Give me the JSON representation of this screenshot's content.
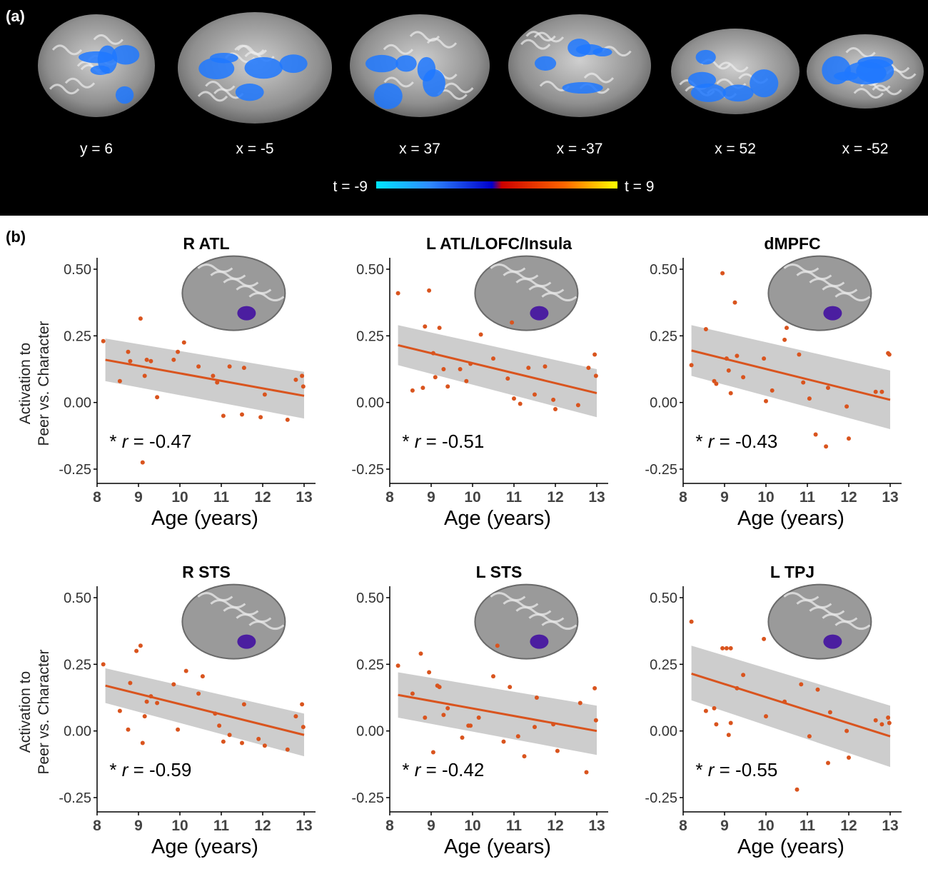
{
  "panel_a": {
    "label": "(a)",
    "slices": [
      "y = 6",
      "x = -5",
      "x = 37",
      "x = -37",
      "x = 52",
      "x = -52"
    ],
    "colorbar": {
      "min_label": "t = -9",
      "max_label": "t = 9",
      "min_t": -9,
      "max_t": 9
    },
    "colors": {
      "background": "#000000",
      "activation": "#1e78ff"
    }
  },
  "panel_b": {
    "label": "(b)",
    "ylabel_line1": "Activation to",
    "ylabel_line2": "Peer vs. Character",
    "colors": {
      "points": "#d9541e",
      "line": "#d9541e",
      "ci": "#c8c8c8",
      "roi": "#4b1ea0"
    }
  },
  "chart_data": [
    {
      "type": "scatter",
      "title": "R ATL",
      "xlabel": "Age (years)",
      "xlim": [
        8,
        13
      ],
      "ylim": [
        -0.25,
        0.5
      ],
      "xticks": [
        8,
        9,
        10,
        11,
        12,
        13
      ],
      "yticks": [
        -0.25,
        0,
        0.25,
        0.5
      ],
      "ytick_labels": [
        "-0.25",
        "0.00",
        "0.25",
        "0.50"
      ],
      "annotation": {
        "star": "*",
        "r": "r",
        "rest": "= -0.47"
      },
      "fit": {
        "y_start": 0.16,
        "y_end": 0.025,
        "ci_start": [
          0.08,
          0.24
        ],
        "ci_end": [
          -0.06,
          0.115
        ]
      },
      "points": [
        [
          8.15,
          0.23
        ],
        [
          8.55,
          0.08
        ],
        [
          8.75,
          0.19
        ],
        [
          8.8,
          0.155
        ],
        [
          9.05,
          0.315
        ],
        [
          9.1,
          -0.225
        ],
        [
          9.15,
          0.1
        ],
        [
          9.2,
          0.16
        ],
        [
          9.3,
          0.155
        ],
        [
          9.45,
          0.02
        ],
        [
          9.85,
          0.16
        ],
        [
          9.95,
          0.19
        ],
        [
          10.1,
          0.225
        ],
        [
          10.45,
          0.135
        ],
        [
          10.8,
          0.1
        ],
        [
          10.9,
          0.075
        ],
        [
          11.05,
          -0.05
        ],
        [
          11.2,
          0.135
        ],
        [
          11.5,
          -0.045
        ],
        [
          11.55,
          0.13
        ],
        [
          11.95,
          -0.055
        ],
        [
          12.05,
          0.03
        ],
        [
          12.6,
          -0.065
        ],
        [
          12.8,
          0.085
        ],
        [
          12.95,
          0.1
        ],
        [
          12.98,
          0.06
        ]
      ]
    },
    {
      "type": "scatter",
      "title": "L ATL/LOFC/Insula",
      "xlabel": "Age (years)",
      "xlim": [
        8,
        13
      ],
      "ylim": [
        -0.25,
        0.5
      ],
      "xticks": [
        8,
        9,
        10,
        11,
        12,
        13
      ],
      "yticks": [
        -0.25,
        0,
        0.25,
        0.5
      ],
      "ytick_labels": [
        "-0.25",
        "0.00",
        "0.25",
        "0.50"
      ],
      "annotation": {
        "star": "*",
        "r": "r",
        "rest": "= -0.51"
      },
      "fit": {
        "y_start": 0.215,
        "y_end": 0.035,
        "ci_start": [
          0.14,
          0.29
        ],
        "ci_end": [
          -0.055,
          0.125
        ]
      },
      "points": [
        [
          8.2,
          0.41
        ],
        [
          8.55,
          0.045
        ],
        [
          8.8,
          0.055
        ],
        [
          8.85,
          0.285
        ],
        [
          8.95,
          0.42
        ],
        [
          9.05,
          0.185
        ],
        [
          9.1,
          0.095
        ],
        [
          9.2,
          0.28
        ],
        [
          9.3,
          0.125
        ],
        [
          9.4,
          0.06
        ],
        [
          9.7,
          0.125
        ],
        [
          9.85,
          0.08
        ],
        [
          9.95,
          0.145
        ],
        [
          10.2,
          0.255
        ],
        [
          10.5,
          0.165
        ],
        [
          10.85,
          0.09
        ],
        [
          10.95,
          0.3
        ],
        [
          11.0,
          0.015
        ],
        [
          11.15,
          -0.005
        ],
        [
          11.35,
          0.13
        ],
        [
          11.5,
          0.03
        ],
        [
          11.75,
          0.135
        ],
        [
          11.95,
          0.01
        ],
        [
          12.0,
          -0.025
        ],
        [
          12.55,
          -0.01
        ],
        [
          12.8,
          0.13
        ],
        [
          12.95,
          0.18
        ],
        [
          12.98,
          0.1
        ]
      ]
    },
    {
      "type": "scatter",
      "title": "dMPFC",
      "xlabel": "Age (years)",
      "xlim": [
        8,
        13
      ],
      "ylim": [
        -0.25,
        0.5
      ],
      "xticks": [
        8,
        9,
        10,
        11,
        12,
        13
      ],
      "yticks": [
        -0.25,
        0,
        0.25,
        0.5
      ],
      "ytick_labels": [
        "-0.25",
        "0.00",
        "0.25",
        "0.50"
      ],
      "annotation": {
        "star": "*",
        "r": "r",
        "rest": "= -0.43"
      },
      "fit": {
        "y_start": 0.195,
        "y_end": 0.01,
        "ci_start": [
          0.1,
          0.29
        ],
        "ci_end": [
          -0.1,
          0.12
        ]
      },
      "points": [
        [
          8.2,
          0.14
        ],
        [
          8.55,
          0.275
        ],
        [
          8.75,
          0.08
        ],
        [
          8.8,
          0.07
        ],
        [
          8.95,
          0.485
        ],
        [
          9.05,
          0.165
        ],
        [
          9.1,
          0.12
        ],
        [
          9.15,
          0.035
        ],
        [
          9.25,
          0.375
        ],
        [
          9.3,
          0.175
        ],
        [
          9.45,
          0.095
        ],
        [
          9.95,
          0.165
        ],
        [
          10.0,
          0.005
        ],
        [
          10.15,
          0.045
        ],
        [
          10.45,
          0.235
        ],
        [
          10.5,
          0.28
        ],
        [
          10.8,
          0.18
        ],
        [
          10.9,
          0.075
        ],
        [
          11.05,
          0.015
        ],
        [
          11.2,
          -0.12
        ],
        [
          11.45,
          -0.165
        ],
        [
          11.5,
          0.055
        ],
        [
          11.95,
          -0.015
        ],
        [
          12.0,
          -0.135
        ],
        [
          12.65,
          0.04
        ],
        [
          12.8,
          0.04
        ],
        [
          12.95,
          0.185
        ],
        [
          12.98,
          0.18
        ]
      ]
    },
    {
      "type": "scatter",
      "title": "R STS",
      "xlabel": "Age (years)",
      "xlim": [
        8,
        13
      ],
      "ylim": [
        -0.25,
        0.5
      ],
      "xticks": [
        8,
        9,
        10,
        11,
        12,
        13
      ],
      "yticks": [
        -0.25,
        0,
        0.25,
        0.5
      ],
      "ytick_labels": [
        "-0.25",
        "0.00",
        "0.25",
        "0.50"
      ],
      "annotation": {
        "star": "*",
        "r": "r",
        "rest": "= -0.59"
      },
      "fit": {
        "y_start": 0.17,
        "y_end": -0.015,
        "ci_start": [
          0.105,
          0.235
        ],
        "ci_end": [
          -0.095,
          0.065
        ]
      },
      "points": [
        [
          8.15,
          0.25
        ],
        [
          8.55,
          0.075
        ],
        [
          8.75,
          0.005
        ],
        [
          8.8,
          0.18
        ],
        [
          8.95,
          0.3
        ],
        [
          9.05,
          0.32
        ],
        [
          9.1,
          -0.045
        ],
        [
          9.15,
          0.055
        ],
        [
          9.2,
          0.11
        ],
        [
          9.3,
          0.13
        ],
        [
          9.45,
          0.105
        ],
        [
          9.85,
          0.175
        ],
        [
          9.95,
          0.005
        ],
        [
          10.15,
          0.225
        ],
        [
          10.45,
          0.14
        ],
        [
          10.55,
          0.205
        ],
        [
          10.85,
          0.065
        ],
        [
          10.95,
          0.02
        ],
        [
          11.05,
          -0.04
        ],
        [
          11.2,
          -0.015
        ],
        [
          11.5,
          -0.045
        ],
        [
          11.55,
          0.1
        ],
        [
          11.9,
          -0.03
        ],
        [
          12.05,
          -0.055
        ],
        [
          12.6,
          -0.07
        ],
        [
          12.8,
          0.055
        ],
        [
          12.95,
          0.1
        ],
        [
          12.98,
          0.015
        ]
      ]
    },
    {
      "type": "scatter",
      "title": "L STS",
      "xlabel": "Age (years)",
      "xlim": [
        8,
        13
      ],
      "ylim": [
        -0.25,
        0.5
      ],
      "xticks": [
        8,
        9,
        10,
        11,
        12,
        13
      ],
      "yticks": [
        -0.25,
        0,
        0.25,
        0.5
      ],
      "ytick_labels": [
        "-0.25",
        "0.00",
        "0.25",
        "0.50"
      ],
      "annotation": {
        "star": "*",
        "r": "r",
        "rest": "= -0.42"
      },
      "fit": {
        "y_start": 0.135,
        "y_end": 0.0,
        "ci_start": [
          0.05,
          0.22
        ],
        "ci_end": [
          -0.09,
          0.095
        ]
      },
      "points": [
        [
          8.2,
          0.245
        ],
        [
          8.55,
          0.14
        ],
        [
          8.75,
          0.29
        ],
        [
          8.85,
          0.05
        ],
        [
          8.95,
          0.22
        ],
        [
          9.05,
          -0.08
        ],
        [
          9.15,
          0.17
        ],
        [
          9.2,
          0.165
        ],
        [
          9.3,
          0.06
        ],
        [
          9.4,
          0.085
        ],
        [
          9.75,
          -0.025
        ],
        [
          9.9,
          0.02
        ],
        [
          9.95,
          0.02
        ],
        [
          10.15,
          0.05
        ],
        [
          10.5,
          0.205
        ],
        [
          10.6,
          0.32
        ],
        [
          10.75,
          -0.04
        ],
        [
          10.9,
          0.165
        ],
        [
          11.1,
          -0.02
        ],
        [
          11.25,
          -0.095
        ],
        [
          11.5,
          0.015
        ],
        [
          11.55,
          0.125
        ],
        [
          11.95,
          0.025
        ],
        [
          12.05,
          -0.075
        ],
        [
          12.6,
          0.105
        ],
        [
          12.75,
          -0.155
        ],
        [
          12.95,
          0.16
        ],
        [
          12.98,
          0.04
        ]
      ]
    },
    {
      "type": "scatter",
      "title": "L TPJ",
      "xlabel": "Age (years)",
      "xlim": [
        8,
        13
      ],
      "ylim": [
        -0.25,
        0.5
      ],
      "xticks": [
        8,
        9,
        10,
        11,
        12,
        13
      ],
      "yticks": [
        -0.25,
        0,
        0.25,
        0.5
      ],
      "ytick_labels": [
        "-0.25",
        "0.00",
        "0.25",
        "0.50"
      ],
      "annotation": {
        "star": "*",
        "r": "r",
        "rest": "= -0.55"
      },
      "fit": {
        "y_start": 0.215,
        "y_end": -0.02,
        "ci_start": [
          0.115,
          0.32
        ],
        "ci_end": [
          -0.135,
          0.095
        ]
      },
      "points": [
        [
          8.2,
          0.41
        ],
        [
          8.55,
          0.075
        ],
        [
          8.75,
          0.085
        ],
        [
          8.8,
          0.025
        ],
        [
          8.95,
          0.31
        ],
        [
          9.05,
          0.31
        ],
        [
          9.1,
          -0.015
        ],
        [
          9.15,
          0.31
        ],
        [
          9.15,
          0.03
        ],
        [
          9.3,
          0.16
        ],
        [
          9.45,
          0.21
        ],
        [
          9.95,
          0.345
        ],
        [
          10.0,
          0.055
        ],
        [
          10.45,
          0.11
        ],
        [
          10.75,
          -0.22
        ],
        [
          10.85,
          0.175
        ],
        [
          11.05,
          -0.02
        ],
        [
          11.25,
          0.155
        ],
        [
          11.5,
          -0.12
        ],
        [
          11.55,
          0.07
        ],
        [
          11.95,
          0.0
        ],
        [
          12.0,
          -0.1
        ],
        [
          12.65,
          0.04
        ],
        [
          12.8,
          0.025
        ],
        [
          12.95,
          0.05
        ],
        [
          12.98,
          0.03
        ]
      ]
    }
  ]
}
